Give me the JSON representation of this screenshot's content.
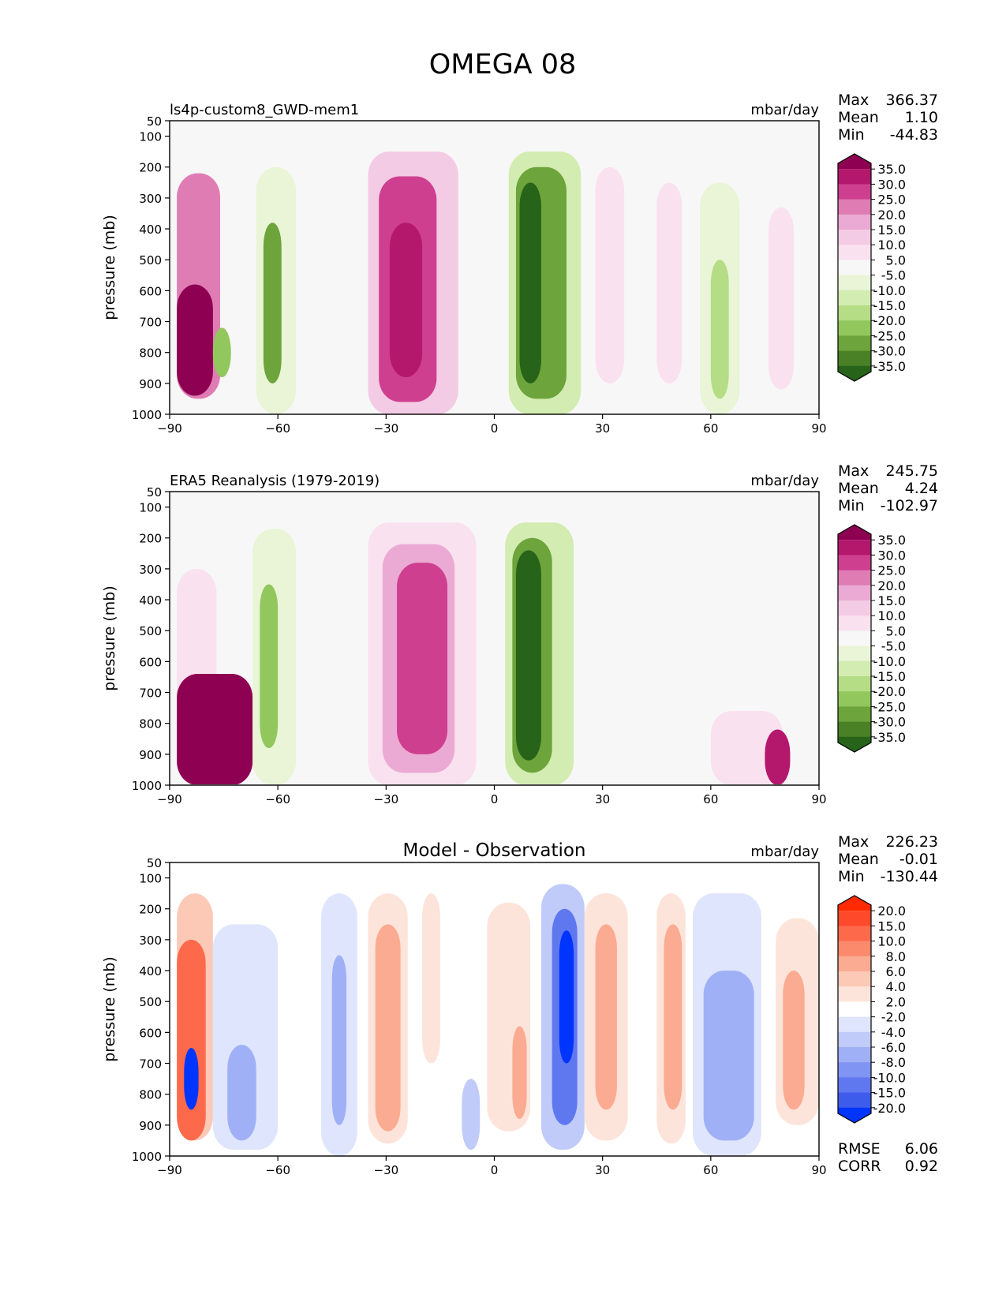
{
  "figure_title": "OMEGA 08",
  "chart_data": [
    {
      "type": "heatmap",
      "panel": "model",
      "title": "",
      "left_label": "ls4p-custom8_GWD-mem1",
      "units": "mbar/day",
      "xlabel": "",
      "ylabel": "pressure (mb)",
      "xlim": [
        -90,
        90
      ],
      "ylim": [
        1000,
        50
      ],
      "xticks": [
        "−90",
        "−60",
        "−30",
        "0",
        "30",
        "60",
        "90"
      ],
      "xtick_values": [
        -90,
        -60,
        -30,
        0,
        30,
        60,
        90
      ],
      "yticks": [
        "50",
        "100",
        "200",
        "300",
        "400",
        "500",
        "600",
        "700",
        "800",
        "900",
        "1000"
      ],
      "ytick_values": [
        50,
        100,
        200,
        300,
        400,
        500,
        600,
        700,
        800,
        900,
        1000
      ],
      "stats": [
        {
          "label": "Max",
          "value": "366.37"
        },
        {
          "label": "Mean",
          "value": "1.10"
        },
        {
          "label": "Min",
          "value": "-44.83"
        }
      ],
      "colorbar": {
        "levels": [
          "35.0",
          "30.0",
          "25.0",
          "20.0",
          "15.0",
          "10.0",
          "5.0",
          "-5.0",
          "-10.0",
          "-15.0",
          "-20.0",
          "-25.0",
          "-30.0",
          "-35.0"
        ],
        "colors": [
          "#8e0152",
          "#b3186d",
          "#cf3f8f",
          "#df7cb4",
          "#ebaad3",
          "#f4cbe4",
          "#fae1ef",
          "#f7f7f7",
          "#e9f5d6",
          "#d3ecb1",
          "#b4dd86",
          "#92c75d",
          "#6da43b",
          "#4a8126",
          "#276419"
        ]
      },
      "features": [
        {
          "lat_min": -88,
          "lat_max": -76,
          "p_top": 220,
          "p_bot": 950,
          "value": 20
        },
        {
          "lat_min": -88,
          "lat_max": -78,
          "p_top": 580,
          "p_bot": 940,
          "value": 40
        },
        {
          "lat_min": -78,
          "lat_max": -73,
          "p_top": 720,
          "p_bot": 880,
          "value": -25
        },
        {
          "lat_min": -66,
          "lat_max": -55,
          "p_top": 200,
          "p_bot": 1000,
          "value": -10
        },
        {
          "lat_min": -64,
          "lat_max": -59,
          "p_top": 380,
          "p_bot": 900,
          "value": -28
        },
        {
          "lat_min": -35,
          "lat_max": -10,
          "p_top": 150,
          "p_bot": 1000,
          "value": 12
        },
        {
          "lat_min": -32,
          "lat_max": -16,
          "p_top": 230,
          "p_bot": 960,
          "value": 25
        },
        {
          "lat_min": -29,
          "lat_max": -20,
          "p_top": 380,
          "p_bot": 880,
          "value": 32
        },
        {
          "lat_min": 4,
          "lat_max": 24,
          "p_top": 150,
          "p_bot": 1000,
          "value": -12
        },
        {
          "lat_min": 6,
          "lat_max": 20,
          "p_top": 200,
          "p_bot": 950,
          "value": -28
        },
        {
          "lat_min": 7,
          "lat_max": 13,
          "p_top": 250,
          "p_bot": 900,
          "value": -38
        },
        {
          "lat_min": 28,
          "lat_max": 36,
          "p_top": 200,
          "p_bot": 900,
          "value": 8
        },
        {
          "lat_min": 45,
          "lat_max": 52,
          "p_top": 250,
          "p_bot": 900,
          "value": 8
        },
        {
          "lat_min": 57,
          "lat_max": 68,
          "p_top": 250,
          "p_bot": 1000,
          "value": -10
        },
        {
          "lat_min": 60,
          "lat_max": 65,
          "p_top": 500,
          "p_bot": 950,
          "value": -18
        },
        {
          "lat_min": 76,
          "lat_max": 83,
          "p_top": 330,
          "p_bot": 920,
          "value": 9
        }
      ]
    },
    {
      "type": "heatmap",
      "panel": "observation",
      "title": "",
      "left_label": "ERA5 Reanalysis (1979-2019)",
      "units": "mbar/day",
      "xlabel": "",
      "ylabel": "pressure (mb)",
      "xlim": [
        -90,
        90
      ],
      "ylim": [
        1000,
        50
      ],
      "xticks": [
        "−90",
        "−60",
        "−30",
        "0",
        "30",
        "60",
        "90"
      ],
      "xtick_values": [
        -90,
        -60,
        -30,
        0,
        30,
        60,
        90
      ],
      "yticks": [
        "50",
        "100",
        "200",
        "300",
        "400",
        "500",
        "600",
        "700",
        "800",
        "900",
        "1000"
      ],
      "ytick_values": [
        50,
        100,
        200,
        300,
        400,
        500,
        600,
        700,
        800,
        900,
        1000
      ],
      "stats": [
        {
          "label": "Max",
          "value": "245.75"
        },
        {
          "label": "Mean",
          "value": "4.24"
        },
        {
          "label": "Min",
          "value": "-102.97"
        }
      ],
      "colorbar": {
        "levels": [
          "35.0",
          "30.0",
          "25.0",
          "20.0",
          "15.0",
          "10.0",
          "5.0",
          "-5.0",
          "-10.0",
          "-15.0",
          "-20.0",
          "-25.0",
          "-30.0",
          "-35.0"
        ],
        "colors": [
          "#8e0152",
          "#b3186d",
          "#cf3f8f",
          "#df7cb4",
          "#ebaad3",
          "#f4cbe4",
          "#fae1ef",
          "#f7f7f7",
          "#e9f5d6",
          "#d3ecb1",
          "#b4dd86",
          "#92c75d",
          "#6da43b",
          "#4a8126",
          "#276419"
        ]
      },
      "features": [
        {
          "lat_min": -88,
          "lat_max": -77,
          "p_top": 300,
          "p_bot": 1000,
          "value": 8
        },
        {
          "lat_min": -88,
          "lat_max": -67,
          "p_top": 640,
          "p_bot": 1000,
          "value": 40
        },
        {
          "lat_min": -67,
          "lat_max": -55,
          "p_top": 170,
          "p_bot": 1000,
          "value": -10
        },
        {
          "lat_min": -65,
          "lat_max": -60,
          "p_top": 350,
          "p_bot": 880,
          "value": -22
        },
        {
          "lat_min": -35,
          "lat_max": -5,
          "p_top": 150,
          "p_bot": 1000,
          "value": 8
        },
        {
          "lat_min": -31,
          "lat_max": -11,
          "p_top": 220,
          "p_bot": 960,
          "value": 18
        },
        {
          "lat_min": -27,
          "lat_max": -13,
          "p_top": 280,
          "p_bot": 900,
          "value": 25
        },
        {
          "lat_min": 3,
          "lat_max": 22,
          "p_top": 150,
          "p_bot": 1000,
          "value": -12
        },
        {
          "lat_min": 5,
          "lat_max": 16,
          "p_top": 200,
          "p_bot": 960,
          "value": -28
        },
        {
          "lat_min": 6,
          "lat_max": 13,
          "p_top": 240,
          "p_bot": 920,
          "value": -38
        },
        {
          "lat_min": 60,
          "lat_max": 80,
          "p_top": 760,
          "p_bot": 1000,
          "value": 8
        },
        {
          "lat_min": 75,
          "lat_max": 82,
          "p_top": 820,
          "p_bot": 1000,
          "value": 32
        }
      ]
    },
    {
      "type": "heatmap",
      "panel": "difference",
      "title": "Model - Observation",
      "left_label": "",
      "units": "mbar/day",
      "xlabel": "",
      "ylabel": "pressure (mb)",
      "xlim": [
        -90,
        90
      ],
      "ylim": [
        1000,
        50
      ],
      "xticks": [
        "−90",
        "−60",
        "−30",
        "0",
        "30",
        "60",
        "90"
      ],
      "xtick_values": [
        -90,
        -60,
        -30,
        0,
        30,
        60,
        90
      ],
      "yticks": [
        "50",
        "100",
        "200",
        "300",
        "400",
        "500",
        "600",
        "700",
        "800",
        "900",
        "1000"
      ],
      "ytick_values": [
        50,
        100,
        200,
        300,
        400,
        500,
        600,
        700,
        800,
        900,
        1000
      ],
      "stats": [
        {
          "label": "Max",
          "value": "226.23"
        },
        {
          "label": "Mean",
          "value": "-0.01"
        },
        {
          "label": "Min",
          "value": "-130.44"
        }
      ],
      "extra_stats": [
        {
          "label": "RMSE",
          "value": "6.06"
        },
        {
          "label": "CORR",
          "value": "0.92"
        }
      ],
      "colorbar": {
        "levels": [
          "20.0",
          "15.0",
          "10.0",
          "8.0",
          "6.0",
          "4.0",
          "2.0",
          "-2.0",
          "-4.0",
          "-6.0",
          "-8.0",
          "-10.0",
          "-15.0",
          "-20.0"
        ],
        "colors": [
          "#ff2a00",
          "#fe4a2a",
          "#fc6a4b",
          "#fb8a6c",
          "#fbab91",
          "#fcc9b7",
          "#fde4da",
          "#ffffff",
          "#dfe5fc",
          "#c0cbfa",
          "#a0b0f7",
          "#7f94f3",
          "#5f78f0",
          "#3e5cec",
          "#0034ff"
        ]
      },
      "features": [
        {
          "lat_min": -88,
          "lat_max": -78,
          "p_top": 150,
          "p_bot": 950,
          "value": 5
        },
        {
          "lat_min": -88,
          "lat_max": -80,
          "p_top": 300,
          "p_bot": 950,
          "value": 12
        },
        {
          "lat_min": -86,
          "lat_max": -82,
          "p_top": 650,
          "p_bot": 850,
          "value": -25
        },
        {
          "lat_min": -78,
          "lat_max": -60,
          "p_top": 250,
          "p_bot": 980,
          "value": -3
        },
        {
          "lat_min": -74,
          "lat_max": -66,
          "p_top": 640,
          "p_bot": 950,
          "value": -8
        },
        {
          "lat_min": -48,
          "lat_max": -38,
          "p_top": 150,
          "p_bot": 1000,
          "value": -3
        },
        {
          "lat_min": -45,
          "lat_max": -41,
          "p_top": 350,
          "p_bot": 900,
          "value": -7
        },
        {
          "lat_min": -35,
          "lat_max": -24,
          "p_top": 150,
          "p_bot": 960,
          "value": 3
        },
        {
          "lat_min": -33,
          "lat_max": -26,
          "p_top": 250,
          "p_bot": 920,
          "value": 7
        },
        {
          "lat_min": -20,
          "lat_max": -15,
          "p_top": 150,
          "p_bot": 700,
          "value": 3
        },
        {
          "lat_min": -9,
          "lat_max": -4,
          "p_top": 750,
          "p_bot": 980,
          "value": -5
        },
        {
          "lat_min": -2,
          "lat_max": 10,
          "p_top": 180,
          "p_bot": 920,
          "value": 3
        },
        {
          "lat_min": 5,
          "lat_max": 9,
          "p_top": 580,
          "p_bot": 880,
          "value": 7
        },
        {
          "lat_min": 13,
          "lat_max": 25,
          "p_top": 120,
          "p_bot": 980,
          "value": -5
        },
        {
          "lat_min": 16,
          "lat_max": 23,
          "p_top": 200,
          "p_bot": 900,
          "value": -12
        },
        {
          "lat_min": 18,
          "lat_max": 22,
          "p_top": 270,
          "p_bot": 700,
          "value": -25
        },
        {
          "lat_min": 25,
          "lat_max": 37,
          "p_top": 150,
          "p_bot": 950,
          "value": 3
        },
        {
          "lat_min": 28,
          "lat_max": 34,
          "p_top": 250,
          "p_bot": 850,
          "value": 7
        },
        {
          "lat_min": 45,
          "lat_max": 53,
          "p_top": 150,
          "p_bot": 960,
          "value": 3
        },
        {
          "lat_min": 47,
          "lat_max": 52,
          "p_top": 250,
          "p_bot": 850,
          "value": 7
        },
        {
          "lat_min": 55,
          "lat_max": 74,
          "p_top": 150,
          "p_bot": 1000,
          "value": -3
        },
        {
          "lat_min": 58,
          "lat_max": 72,
          "p_top": 400,
          "p_bot": 950,
          "value": -7
        },
        {
          "lat_min": 78,
          "lat_max": 90,
          "p_top": 230,
          "p_bot": 900,
          "value": 3
        },
        {
          "lat_min": 80,
          "lat_max": 86,
          "p_top": 400,
          "p_bot": 850,
          "value": 7
        }
      ]
    }
  ]
}
